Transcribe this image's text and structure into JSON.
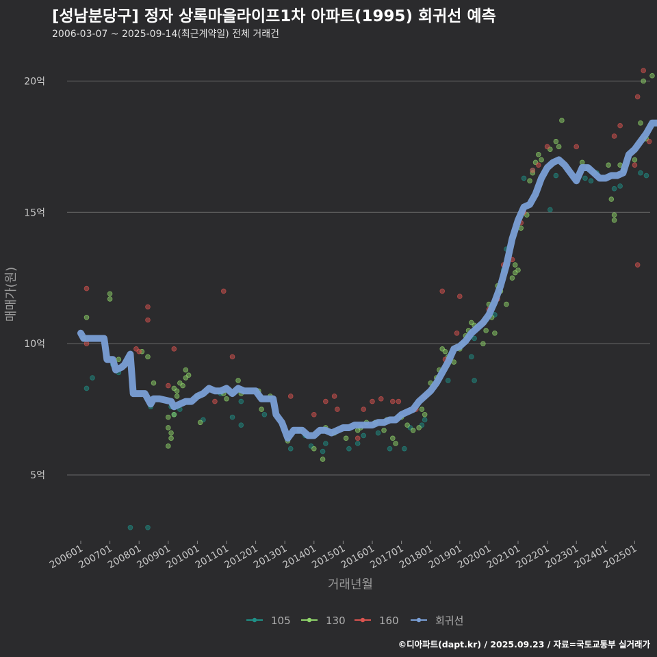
{
  "title": "[성남분당구] 정자 상록마을라이프1차 아파트(1995) 회귀선 예측",
  "subtitle": "2006-03-07 ~ 2025-09-14(최근계약일) 전체 거래건",
  "credit": "©디아파트(dapt.kr) / 2025.09.23 / 자료=국토교통부 실거래가",
  "colors": {
    "background": "#2b2b2d",
    "grid": "#6a6a6a",
    "s105": "#1f8f86",
    "s130": "#8fd46a",
    "s160": "#d9534f",
    "regression": "#7a9fd6"
  },
  "chart_data": {
    "type": "scatter",
    "title": "[성남분당구] 정자 상록마을라이프1차 아파트(1995) 회귀선 예측",
    "subtitle": "2006-03-07 ~ 2025-09-14(최근계약일) 전체 거래건",
    "xlabel": "거래년월",
    "ylabel": "매매가(원)",
    "x_ticks": [
      "200601",
      "200701",
      "200801",
      "200901",
      "201001",
      "201101",
      "201201",
      "201301",
      "201401",
      "201501",
      "201601",
      "201701",
      "201801",
      "201901",
      "202001",
      "202101",
      "202201",
      "202301",
      "202401",
      "202501"
    ],
    "y_ticks": [
      "5억",
      "10억",
      "15억",
      "20억"
    ],
    "y_tick_values": [
      5,
      10,
      15,
      20
    ],
    "xlim": [
      2006.0,
      2026.0
    ],
    "ylim": [
      2.5,
      21
    ],
    "y_unit": "억",
    "grid": "horizontal",
    "legend_position": "bottom",
    "series": [
      {
        "name": "105",
        "color": "#1f8f86",
        "points": [
          [
            2006.2,
            8.3
          ],
          [
            2006.4,
            8.7
          ],
          [
            2007.1,
            9.2
          ],
          [
            2007.3,
            8.9
          ],
          [
            2007.7,
            3.0
          ],
          [
            2008.3,
            3.0
          ],
          [
            2008.4,
            7.6
          ],
          [
            2009.1,
            7.6
          ],
          [
            2009.2,
            7.3
          ],
          [
            2009.4,
            7.5
          ],
          [
            2010.2,
            7.1
          ],
          [
            2010.8,
            8.1
          ],
          [
            2011.2,
            7.2
          ],
          [
            2011.5,
            6.9
          ],
          [
            2011.5,
            7.8
          ],
          [
            2012.3,
            7.3
          ],
          [
            2013.2,
            6.0
          ],
          [
            2013.7,
            6.5
          ],
          [
            2013.9,
            6.1
          ],
          [
            2014.3,
            5.9
          ],
          [
            2014.4,
            6.2
          ],
          [
            2015.2,
            6.0
          ],
          [
            2015.5,
            6.2
          ],
          [
            2015.7,
            6.5
          ],
          [
            2016.2,
            6.6
          ],
          [
            2016.6,
            6.0
          ],
          [
            2017.1,
            6.0
          ],
          [
            2017.3,
            6.8
          ],
          [
            2017.7,
            6.9
          ],
          [
            2017.8,
            7.1
          ],
          [
            2018.6,
            8.6
          ],
          [
            2019.4,
            9.5
          ],
          [
            2019.5,
            8.6
          ],
          [
            2019.5,
            10.2
          ],
          [
            2020.2,
            11.1
          ],
          [
            2020.5,
            12.8
          ],
          [
            2020.6,
            13.6
          ],
          [
            2021.2,
            16.3
          ],
          [
            2021.5,
            16.6
          ],
          [
            2022.1,
            15.1
          ],
          [
            2022.3,
            16.4
          ],
          [
            2023.3,
            16.3
          ],
          [
            2023.5,
            16.2
          ],
          [
            2023.7,
            16.5
          ],
          [
            2024.3,
            15.9
          ],
          [
            2024.5,
            16.0
          ],
          [
            2025.2,
            16.5
          ],
          [
            2025.4,
            16.4
          ]
        ]
      },
      {
        "name": "130",
        "color": "#8fd46a",
        "points": [
          [
            2006.1,
            10.2
          ],
          [
            2006.2,
            11.0
          ],
          [
            2007.0,
            11.9
          ],
          [
            2007.0,
            11.7
          ],
          [
            2007.3,
            9.4
          ],
          [
            2008.1,
            9.7
          ],
          [
            2008.3,
            9.5
          ],
          [
            2008.5,
            8.5
          ],
          [
            2009.0,
            6.8
          ],
          [
            2009.0,
            6.1
          ],
          [
            2009.1,
            6.4
          ],
          [
            2009.1,
            6.6
          ],
          [
            2009.2,
            8.3
          ],
          [
            2009.3,
            8.0
          ],
          [
            2009.3,
            8.2
          ],
          [
            2009.4,
            8.5
          ],
          [
            2009.5,
            8.4
          ],
          [
            2009.6,
            8.7
          ],
          [
            2009.6,
            9.0
          ],
          [
            2009.7,
            8.8
          ],
          [
            2009.0,
            7.2
          ],
          [
            2009.2,
            7.3
          ],
          [
            2010.0,
            8.0
          ],
          [
            2010.1,
            7.0
          ],
          [
            2010.9,
            8.1
          ],
          [
            2011.0,
            7.9
          ],
          [
            2011.4,
            8.6
          ],
          [
            2011.5,
            8.1
          ],
          [
            2012.1,
            8.2
          ],
          [
            2012.5,
            8.0
          ],
          [
            2012.2,
            7.5
          ],
          [
            2013.1,
            6.3
          ],
          [
            2013.5,
            6.7
          ],
          [
            2014.0,
            6.0
          ],
          [
            2014.3,
            5.6
          ],
          [
            2014.4,
            6.8
          ],
          [
            2014.7,
            6.6
          ],
          [
            2015.1,
            6.4
          ],
          [
            2015.5,
            6.7
          ],
          [
            2015.6,
            6.8
          ],
          [
            2015.8,
            7.0
          ],
          [
            2016.1,
            7.0
          ],
          [
            2016.4,
            6.7
          ],
          [
            2016.5,
            7.1
          ],
          [
            2016.7,
            6.4
          ],
          [
            2016.8,
            6.2
          ],
          [
            2017.0,
            7.2
          ],
          [
            2017.2,
            6.9
          ],
          [
            2017.4,
            6.7
          ],
          [
            2017.6,
            6.8
          ],
          [
            2017.7,
            7.5
          ],
          [
            2017.8,
            7.3
          ],
          [
            2018.0,
            8.5
          ],
          [
            2018.2,
            8.7
          ],
          [
            2018.3,
            9.0
          ],
          [
            2018.4,
            9.8
          ],
          [
            2018.5,
            9.7
          ],
          [
            2018.6,
            9.5
          ],
          [
            2018.8,
            9.3
          ],
          [
            2019.0,
            9.8
          ],
          [
            2019.1,
            10.0
          ],
          [
            2019.2,
            10.3
          ],
          [
            2019.3,
            10.5
          ],
          [
            2019.4,
            10.8
          ],
          [
            2019.5,
            10.7
          ],
          [
            2019.8,
            10.0
          ],
          [
            2019.9,
            10.5
          ],
          [
            2020.0,
            11.5
          ],
          [
            2020.1,
            11.0
          ],
          [
            2020.2,
            10.4
          ],
          [
            2020.3,
            12.2
          ],
          [
            2020.4,
            12.0
          ],
          [
            2020.6,
            11.5
          ],
          [
            2020.8,
            12.5
          ],
          [
            2020.9,
            13.0
          ],
          [
            2020.9,
            12.7
          ],
          [
            2021.0,
            12.8
          ],
          [
            2021.1,
            14.4
          ],
          [
            2021.3,
            14.9
          ],
          [
            2021.4,
            16.2
          ],
          [
            2021.5,
            16.5
          ],
          [
            2021.6,
            16.9
          ],
          [
            2021.7,
            17.2
          ],
          [
            2021.8,
            17.0
          ],
          [
            2022.1,
            17.4
          ],
          [
            2022.3,
            17.7
          ],
          [
            2022.4,
            17.5
          ],
          [
            2022.5,
            18.5
          ],
          [
            2023.2,
            16.9
          ],
          [
            2023.4,
            16.7
          ],
          [
            2023.6,
            16.5
          ],
          [
            2024.1,
            16.8
          ],
          [
            2024.2,
            15.5
          ],
          [
            2024.3,
            14.7
          ],
          [
            2024.3,
            14.9
          ],
          [
            2024.5,
            16.8
          ],
          [
            2024.6,
            16.6
          ],
          [
            2025.0,
            17.0
          ],
          [
            2025.2,
            18.4
          ],
          [
            2025.3,
            20.0
          ],
          [
            2025.6,
            20.2
          ],
          [
            2025.4,
            17.8
          ]
        ]
      },
      {
        "name": "160",
        "color": "#d9534f",
        "points": [
          [
            2006.2,
            12.1
          ],
          [
            2006.2,
            10.0
          ],
          [
            2007.9,
            9.8
          ],
          [
            2008.0,
            9.7
          ],
          [
            2008.3,
            11.4
          ],
          [
            2008.3,
            10.9
          ],
          [
            2009.2,
            9.8
          ],
          [
            2009.0,
            8.4
          ],
          [
            2010.6,
            7.8
          ],
          [
            2010.9,
            12.0
          ],
          [
            2011.2,
            9.5
          ],
          [
            2013.2,
            8.0
          ],
          [
            2014.0,
            7.3
          ],
          [
            2014.4,
            7.8
          ],
          [
            2014.7,
            8.0
          ],
          [
            2014.8,
            7.5
          ],
          [
            2015.5,
            6.4
          ],
          [
            2015.7,
            7.5
          ],
          [
            2016.0,
            7.8
          ],
          [
            2016.3,
            7.9
          ],
          [
            2016.7,
            7.8
          ],
          [
            2016.9,
            7.8
          ],
          [
            2017.5,
            7.5
          ],
          [
            2017.8,
            8.0
          ],
          [
            2018.4,
            12.0
          ],
          [
            2018.5,
            9.4
          ],
          [
            2018.9,
            10.4
          ],
          [
            2019.0,
            11.8
          ],
          [
            2019.8,
            10.8
          ],
          [
            2020.0,
            11.3
          ],
          [
            2020.3,
            11.7
          ],
          [
            2020.5,
            13.0
          ],
          [
            2020.8,
            13.2
          ],
          [
            2021.1,
            14.6
          ],
          [
            2021.2,
            15.0
          ],
          [
            2021.5,
            16.6
          ],
          [
            2021.7,
            16.8
          ],
          [
            2022.0,
            17.5
          ],
          [
            2023.0,
            17.5
          ],
          [
            2024.3,
            17.9
          ],
          [
            2024.5,
            18.3
          ],
          [
            2025.0,
            16.8
          ],
          [
            2025.1,
            13.0
          ],
          [
            2025.1,
            19.4
          ],
          [
            2025.3,
            20.4
          ],
          [
            2025.5,
            17.7
          ]
        ]
      },
      {
        "name": "회귀선",
        "color": "#7a9fd6",
        "points": [
          [
            2006.0,
            10.4
          ],
          [
            2006.1,
            10.2
          ],
          [
            2006.8,
            10.2
          ],
          [
            2006.9,
            9.4
          ],
          [
            2007.1,
            9.4
          ],
          [
            2007.2,
            9.0
          ],
          [
            2007.4,
            9.1
          ],
          [
            2007.5,
            9.2
          ],
          [
            2007.7,
            9.6
          ],
          [
            2007.8,
            8.1
          ],
          [
            2008.2,
            8.1
          ],
          [
            2008.4,
            7.7
          ],
          [
            2008.5,
            7.9
          ],
          [
            2008.7,
            7.9
          ],
          [
            2009.1,
            7.8
          ],
          [
            2009.2,
            7.6
          ],
          [
            2009.4,
            7.7
          ],
          [
            2009.6,
            7.8
          ],
          [
            2009.8,
            7.8
          ],
          [
            2010.0,
            8.0
          ],
          [
            2010.2,
            8.1
          ],
          [
            2010.4,
            8.3
          ],
          [
            2010.6,
            8.2
          ],
          [
            2010.8,
            8.2
          ],
          [
            2011.0,
            8.3
          ],
          [
            2011.2,
            8.1
          ],
          [
            2011.4,
            8.3
          ],
          [
            2011.6,
            8.2
          ],
          [
            2012.0,
            8.2
          ],
          [
            2012.2,
            7.9
          ],
          [
            2012.6,
            7.9
          ],
          [
            2012.7,
            7.3
          ],
          [
            2012.9,
            7.0
          ],
          [
            2013.1,
            6.4
          ],
          [
            2013.3,
            6.7
          ],
          [
            2013.6,
            6.7
          ],
          [
            2013.8,
            6.5
          ],
          [
            2014.0,
            6.5
          ],
          [
            2014.2,
            6.7
          ],
          [
            2014.4,
            6.7
          ],
          [
            2014.6,
            6.6
          ],
          [
            2014.8,
            6.7
          ],
          [
            2015.0,
            6.8
          ],
          [
            2015.2,
            6.8
          ],
          [
            2015.4,
            6.9
          ],
          [
            2015.6,
            6.9
          ],
          [
            2015.8,
            6.9
          ],
          [
            2016.0,
            6.9
          ],
          [
            2016.2,
            7.0
          ],
          [
            2016.4,
            7.0
          ],
          [
            2016.6,
            7.1
          ],
          [
            2016.8,
            7.1
          ],
          [
            2017.0,
            7.3
          ],
          [
            2017.2,
            7.4
          ],
          [
            2017.4,
            7.5
          ],
          [
            2017.6,
            7.8
          ],
          [
            2017.8,
            8.0
          ],
          [
            2018.0,
            8.2
          ],
          [
            2018.2,
            8.5
          ],
          [
            2018.4,
            8.9
          ],
          [
            2018.6,
            9.3
          ],
          [
            2018.8,
            9.8
          ],
          [
            2019.0,
            9.9
          ],
          [
            2019.2,
            10.1
          ],
          [
            2019.4,
            10.4
          ],
          [
            2019.6,
            10.6
          ],
          [
            2019.8,
            10.8
          ],
          [
            2020.0,
            11.1
          ],
          [
            2020.2,
            11.6
          ],
          [
            2020.4,
            12.2
          ],
          [
            2020.6,
            13.0
          ],
          [
            2020.8,
            14.0
          ],
          [
            2021.0,
            14.7
          ],
          [
            2021.2,
            15.2
          ],
          [
            2021.4,
            15.3
          ],
          [
            2021.6,
            15.7
          ],
          [
            2021.8,
            16.3
          ],
          [
            2022.0,
            16.7
          ],
          [
            2022.2,
            16.9
          ],
          [
            2022.4,
            17.0
          ],
          [
            2022.6,
            16.8
          ],
          [
            2022.8,
            16.5
          ],
          [
            2023.0,
            16.2
          ],
          [
            2023.2,
            16.7
          ],
          [
            2023.4,
            16.7
          ],
          [
            2023.6,
            16.5
          ],
          [
            2023.8,
            16.3
          ],
          [
            2024.0,
            16.3
          ],
          [
            2024.2,
            16.4
          ],
          [
            2024.4,
            16.4
          ],
          [
            2024.6,
            16.5
          ],
          [
            2024.8,
            17.2
          ],
          [
            2025.0,
            17.4
          ],
          [
            2025.2,
            17.7
          ],
          [
            2025.4,
            18.0
          ],
          [
            2025.6,
            18.4
          ],
          [
            2025.8,
            18.4
          ]
        ]
      }
    ]
  }
}
